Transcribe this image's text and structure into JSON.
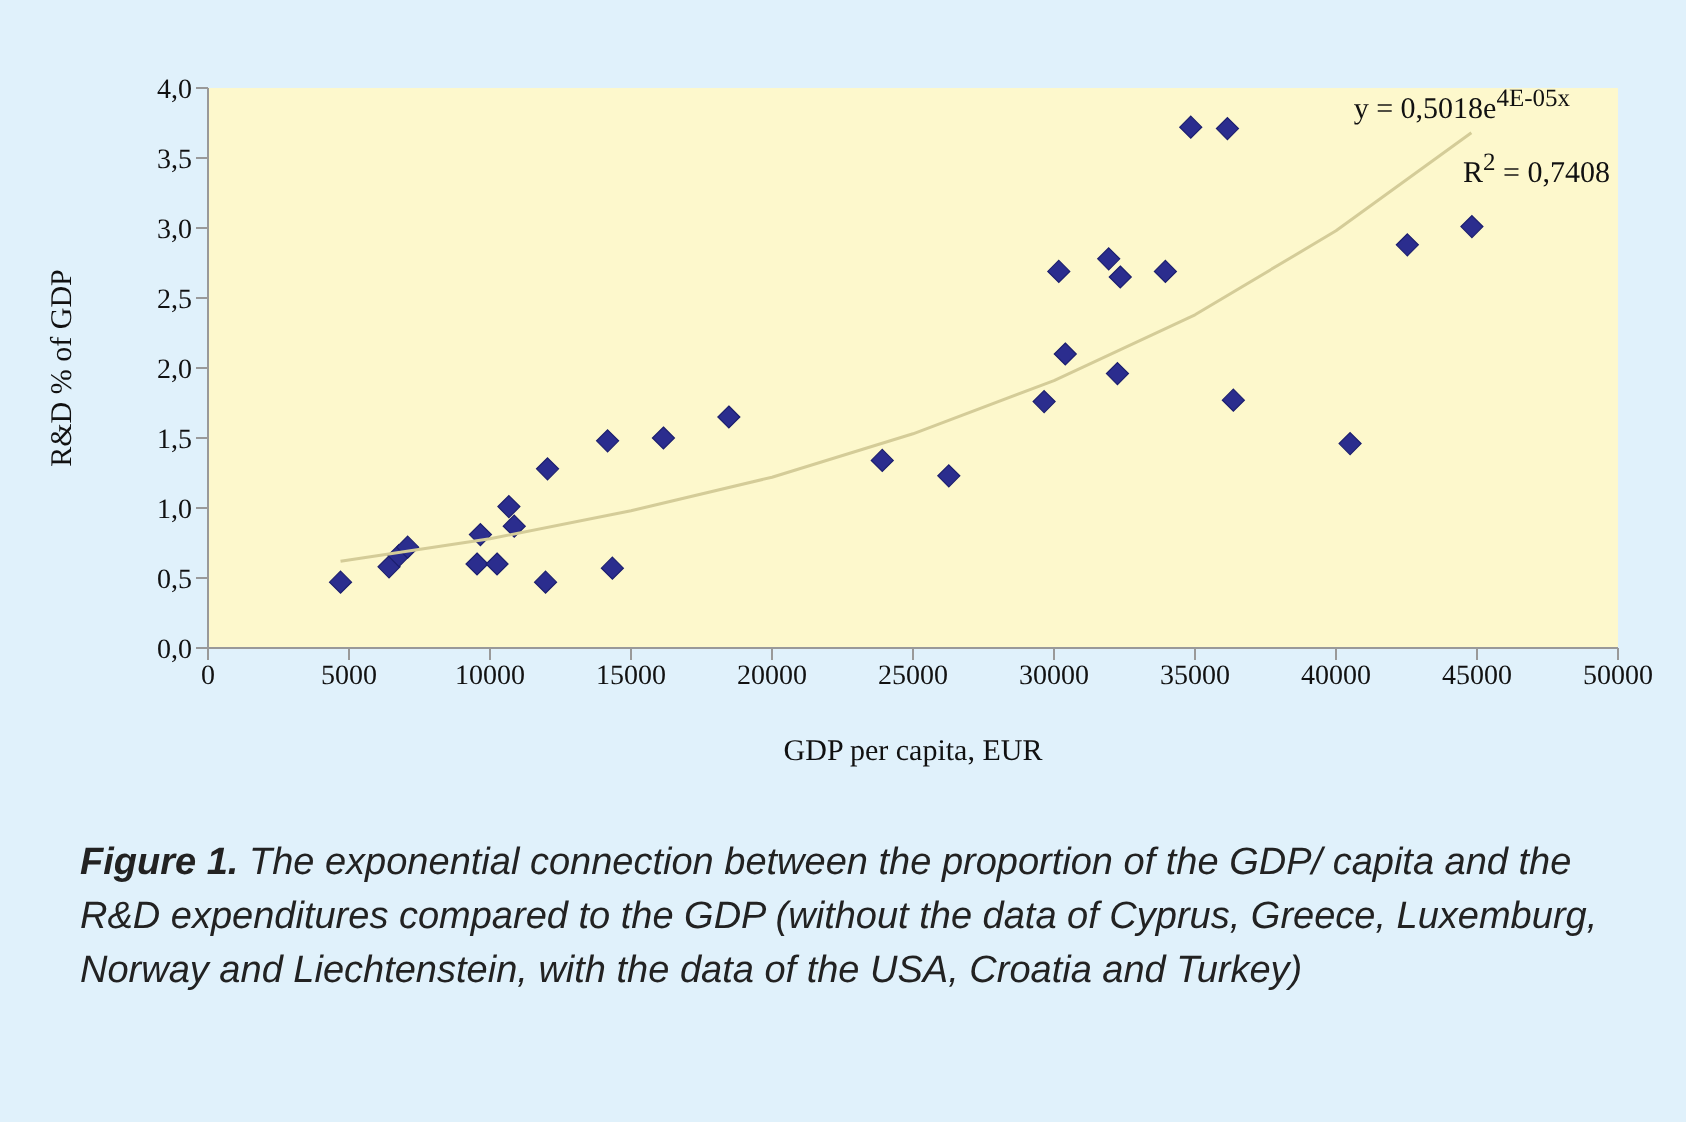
{
  "chart_data": {
    "type": "scatter",
    "xlabel": "GDP per capita, EUR",
    "ylabel": "R&D % of GDP",
    "annotations": [
      "y = 0,5018e$^{4E-05x}$",
      "R$^{2}$ = 0,7408",
      "Figure 1. The exponential connection between the proportion of the GDP/ capita and the R&D expenditures compared to the GDP (without the data of Cyprus, Greece, Luxemburg, Norway and Liechtenstein, with the data of the USA, Croatia and Turkey)"
    ],
    "series": [
      {
        "color": "#2b2d8e",
        "marker": "diamond",
        "x": [
          4700,
          6420,
          6770,
          7080,
          9540,
          9660,
          10250,
          10670,
          10860,
          12040,
          11970,
          14170,
          14340,
          16150,
          18470,
          23910,
          26270,
          29650,
          30170,
          30400,
          31940,
          32350,
          32250,
          33950,
          34850,
          36150,
          36360,
          40500,
          42530,
          44820
        ],
        "values": [
          0.47,
          0.58,
          0.66,
          0.72,
          0.6,
          0.81,
          0.6,
          1.01,
          0.87,
          1.28,
          0.47,
          1.48,
          0.57,
          1.5,
          1.65,
          1.34,
          1.23,
          1.76,
          2.69,
          2.1,
          2.78,
          2.65,
          1.96,
          2.69,
          3.72,
          3.71,
          1.77,
          1.46,
          2.88,
          3.01
        ]
      },
      {
        "type": "line",
        "color": "#d4cc98",
        "marker": "none",
        "x": [
          4700,
          10000,
          15000,
          20000,
          25000,
          30000,
          35000,
          40000,
          44800
        ],
        "values": [
          0.62,
          0.78,
          0.98,
          1.22,
          1.53,
          1.91,
          2.38,
          2.98,
          3.68
        ]
      }
    ],
    "xlim": [
      0,
      50000
    ],
    "xticks": [
      0,
      5000,
      10000,
      15000,
      20000,
      25000,
      30000,
      35000,
      40000,
      45000,
      50000
    ],
    "ylim": [
      0,
      4
    ],
    "yticks": [
      {
        "value": 0,
        "label": "0,0"
      },
      {
        "value": 0.5,
        "label": "0,5"
      },
      {
        "value": 1,
        "label": "1,0"
      },
      {
        "value": 1.5,
        "label": "1,5"
      },
      {
        "value": 2,
        "label": "2,0"
      },
      {
        "value": 2.5,
        "label": "2,5"
      },
      {
        "value": 3,
        "label": "3,0"
      },
      {
        "value": 3.5,
        "label": "3,5"
      },
      {
        "value": 4,
        "label": "4,0"
      }
    ],
    "grid": false,
    "legend": false
  }
}
